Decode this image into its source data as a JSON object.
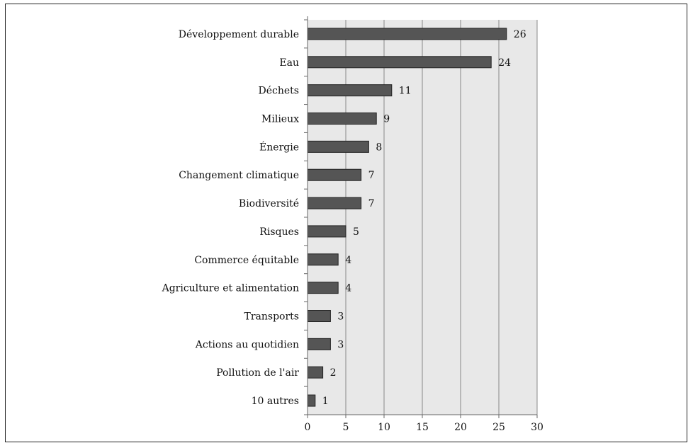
{
  "chart_data": {
    "type": "bar",
    "orientation": "horizontal",
    "title": "",
    "xlabel": "",
    "ylabel": "",
    "categories": [
      "Développement durable",
      "Eau",
      "Déchets",
      "Milieux",
      "Énergie",
      "Changement climatique",
      "Biodiversité",
      "Risques",
      "Commerce équitable",
      "Agriculture et alimentation",
      "Transports",
      "Actions au quotidien",
      "Pollution de l'air",
      "10 autres"
    ],
    "values": [
      26,
      24,
      11,
      9,
      8,
      7,
      7,
      5,
      4,
      4,
      3,
      3,
      2,
      1
    ],
    "xlim": [
      0,
      30
    ],
    "xticks": [
      0,
      5,
      10,
      15,
      20,
      25,
      30
    ],
    "grid": "vertical",
    "legend": "none",
    "colors": {
      "bar_fill": "#555555",
      "bar_stroke": "#222222",
      "plot_background": "#e8e8e8",
      "gridline": "#888888",
      "axis": "#666666"
    }
  }
}
